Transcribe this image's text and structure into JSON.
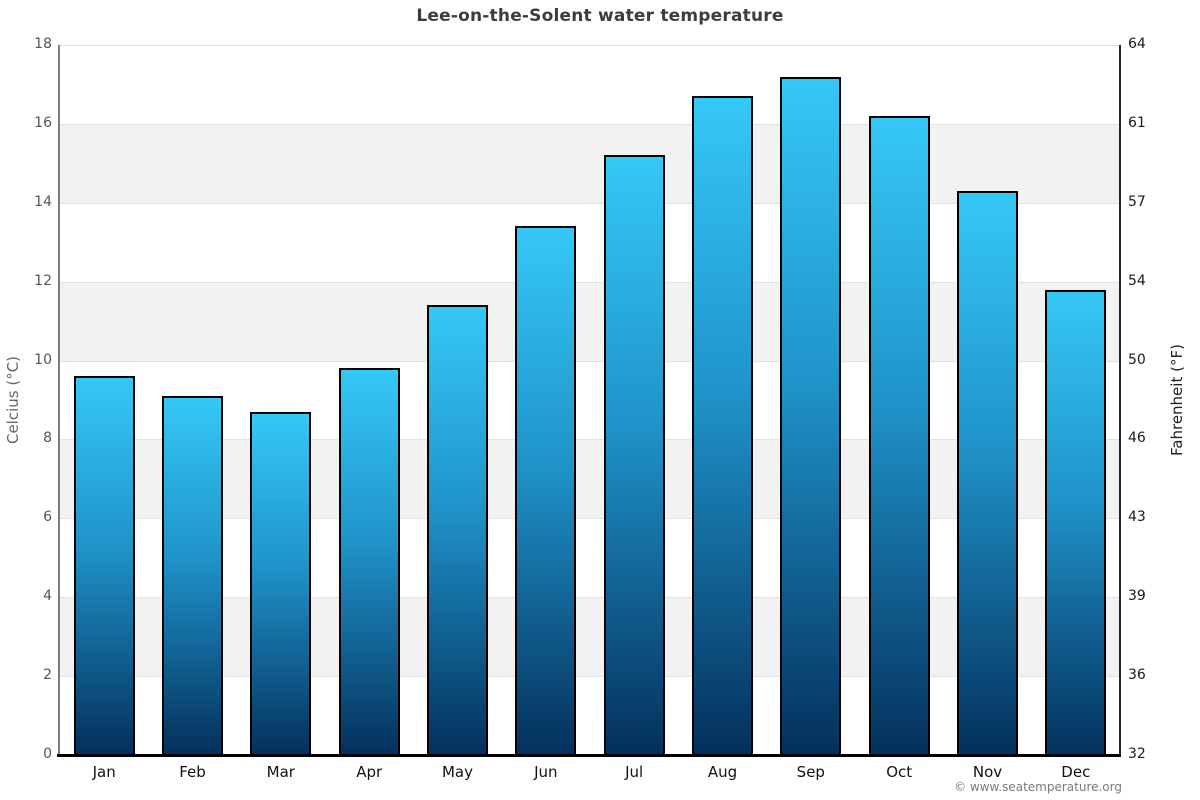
{
  "chart_data": {
    "type": "bar",
    "title": "Lee-on-the-Solent water temperature",
    "categories": [
      "Jan",
      "Feb",
      "Mar",
      "Apr",
      "May",
      "Jun",
      "Jul",
      "Aug",
      "Sep",
      "Oct",
      "Nov",
      "Dec"
    ],
    "values": [
      9.6,
      9.1,
      8.7,
      9.8,
      11.4,
      13.4,
      15.2,
      16.7,
      17.2,
      16.2,
      14.3,
      11.8
    ],
    "ylabel_left": "Celcius (°C)",
    "ylabel_right": "Fahrenheit (°F)",
    "ylim_left": [
      0,
      18
    ],
    "yticks_left": [
      0,
      2,
      4,
      6,
      8,
      10,
      12,
      14,
      16,
      18
    ],
    "yticks_right": [
      32,
      36,
      39,
      43,
      46,
      50,
      54,
      57,
      61,
      64
    ],
    "legend": "none",
    "grid": "horizontal gridlines with alternating gray/white bands"
  },
  "footer": {
    "credit": "© www.seatemperature.org"
  },
  "colors": {
    "bar_gradient_top": "#35c8f6",
    "bar_gradient_mid": "#1f93c9",
    "bar_gradient_bottom": "#04305c",
    "bar_border": "#000000",
    "band_gray": "#f2f2f2",
    "band_white": "#ffffff",
    "gridline": "#e2e2e2",
    "axis_left_line": "#7d7d7d",
    "axis_right_line": "#262626",
    "axis_bottom_line": "#000000",
    "title_text": "#3d3d3d",
    "tick_left_text": "#555555",
    "tick_right_text": "#1a1a1a",
    "footer_text": "#7a7a7a"
  }
}
